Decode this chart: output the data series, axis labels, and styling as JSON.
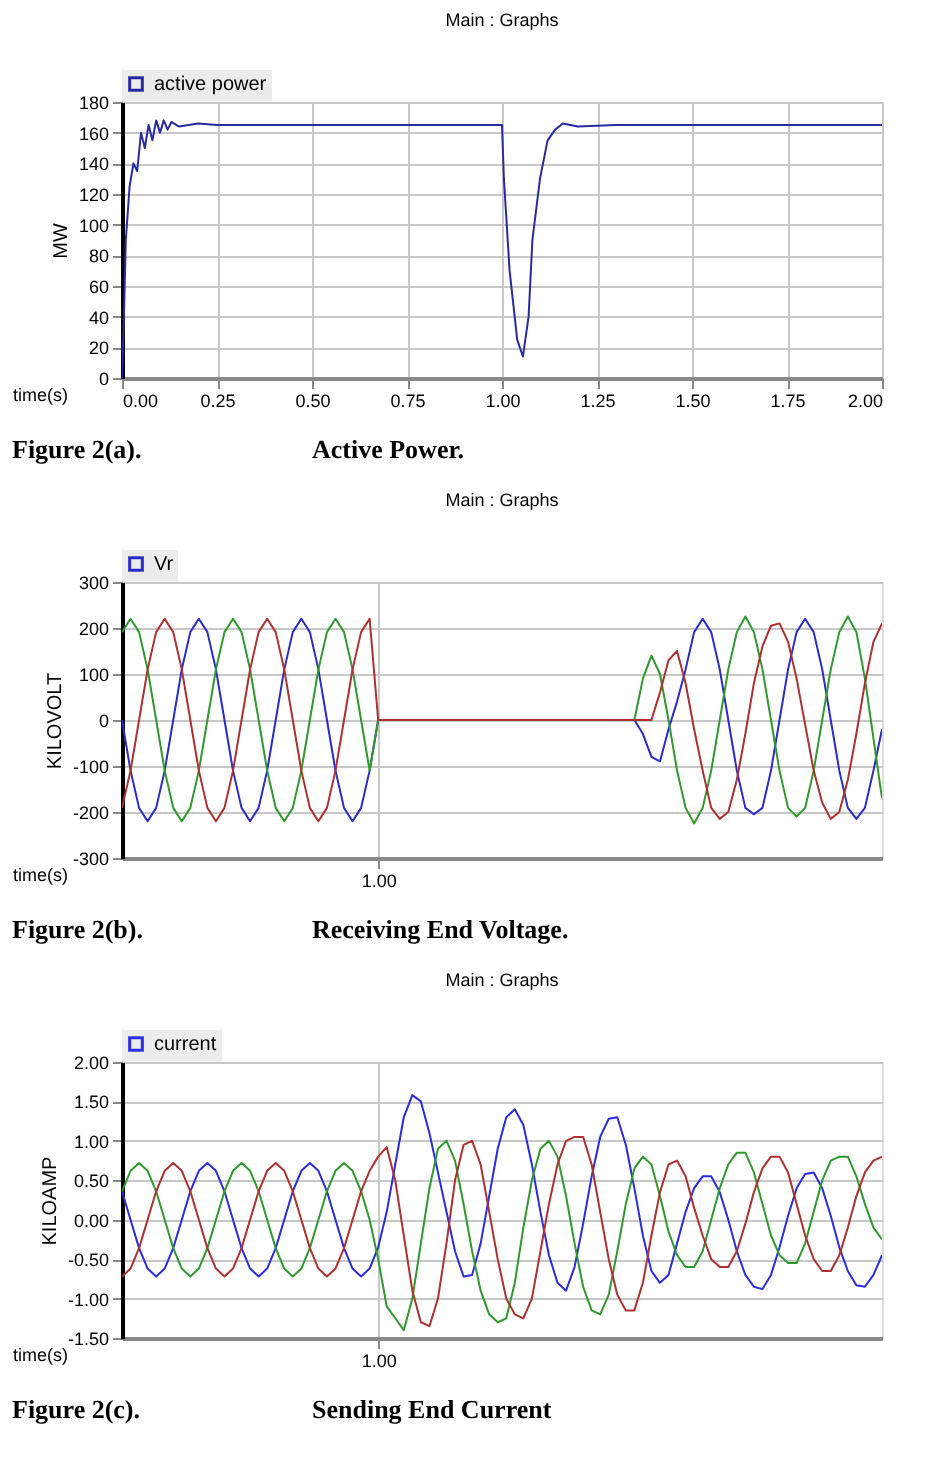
{
  "chart_data": [
    {
      "type": "line",
      "title": "Main : Graphs",
      "xlabel": "time(s)",
      "ylabel": "MW",
      "legend": "top left",
      "grid": true,
      "annotations": [
        "Figure 2(a).",
        "Active Power."
      ],
      "x": [
        0,
        0.005,
        0.01,
        0.02,
        0.03,
        0.04,
        0.05,
        0.06,
        0.07,
        0.08,
        0.09,
        0.1,
        0.11,
        0.12,
        0.13,
        0.15,
        0.2,
        0.25,
        0.35,
        1.0,
        1.005,
        1.02,
        1.04,
        1.055,
        1.07,
        1.08,
        1.1,
        1.12,
        1.14,
        1.16,
        1.2,
        1.3,
        2.0
      ],
      "xlim": [
        0,
        2.0
      ],
      "ylim": [
        0,
        180
      ],
      "xticks": [
        {
          "value": 0,
          "label": "0.00"
        },
        {
          "value": 0.25,
          "label": "0.25"
        },
        {
          "value": 0.5,
          "label": "0.50"
        },
        {
          "value": 0.75,
          "label": "0.75"
        },
        {
          "value": 1,
          "label": "1.00"
        },
        {
          "value": 1.25,
          "label": "1.25"
        },
        {
          "value": 1.5,
          "label": "1.50"
        },
        {
          "value": 1.75,
          "label": "1.75"
        },
        {
          "value": 2,
          "label": "2.00"
        }
      ],
      "yticks": [
        0,
        20,
        40,
        60,
        80,
        100,
        120,
        140,
        160,
        180
      ],
      "series": [
        {
          "name": "active power",
          "color": "#2a2aa0",
          "values": [
            0,
            40,
            90,
            125,
            140,
            135,
            160,
            150,
            165,
            155,
            168,
            160,
            168,
            162,
            167,
            164,
            166,
            165,
            165,
            165,
            130,
            70,
            25,
            14,
            40,
            90,
            130,
            155,
            162,
            166,
            164,
            165,
            165
          ]
        }
      ]
    },
    {
      "type": "line",
      "title": "Main : Graphs",
      "xlabel": "time(s)",
      "ylabel": "KILOVOLT",
      "legend": "top left",
      "grid": true,
      "annotations": [
        "Figure 2(b).",
        "Receiving End Voltage."
      ],
      "categories": [
        null,
        null,
        null,
        null,
        null,
        null,
        null,
        null,
        null,
        null,
        null,
        null,
        null,
        null,
        null,
        null,
        null,
        null,
        null,
        null,
        null,
        null,
        null,
        null,
        null,
        null,
        null,
        null,
        null,
        null,
        "1.00",
        null,
        null,
        null,
        null,
        null,
        null,
        null,
        null,
        null,
        null,
        null,
        null,
        null,
        null,
        null,
        null,
        null,
        null,
        null,
        null,
        null,
        null,
        null,
        null,
        null,
        null,
        null,
        null,
        null,
        null,
        null,
        null,
        null,
        null,
        null,
        null,
        null,
        null,
        null,
        null,
        null,
        null,
        null,
        null,
        null,
        null,
        null,
        null,
        null,
        null,
        null,
        null,
        null,
        null,
        null,
        null,
        null,
        null,
        null
      ],
      "ylim": [
        -300,
        300
      ],
      "yticks": [
        -300,
        -200,
        -100,
        0,
        100,
        200,
        300
      ],
      "series": [
        {
          "name": "Vr",
          "color": "#2b2bc8",
          "values": [
            0,
            -110,
            -191,
            -220,
            -191,
            -110,
            0,
            110,
            191,
            220,
            191,
            110,
            0,
            -110,
            -191,
            -220,
            -191,
            -110,
            0,
            110,
            191,
            220,
            191,
            110,
            0,
            -110,
            -191,
            -220,
            -191,
            -110,
            0,
            0,
            0,
            0,
            0,
            0,
            0,
            0,
            0,
            0,
            0,
            0,
            0,
            0,
            0,
            0,
            0,
            0,
            0,
            0,
            0,
            0,
            0,
            0,
            0,
            0,
            0,
            0,
            0,
            0,
            0,
            -30,
            -80,
            -90,
            -20,
            40,
            110,
            191,
            220,
            191,
            110,
            0,
            -110,
            -191,
            -205,
            -191,
            -110,
            0,
            110,
            191,
            220,
            191,
            110,
            0,
            -110,
            -191,
            -215,
            -191,
            -110,
            -20
          ]
        },
        {
          "color": "#2e9a2e",
          "values": [
            191,
            220,
            191,
            110,
            0,
            -110,
            -191,
            -220,
            -191,
            -110,
            0,
            110,
            191,
            220,
            191,
            110,
            0,
            -110,
            -191,
            -220,
            -191,
            -110,
            0,
            110,
            191,
            220,
            191,
            110,
            0,
            -110,
            0,
            0,
            0,
            0,
            0,
            0,
            0,
            0,
            0,
            0,
            0,
            0,
            0,
            0,
            0,
            0,
            0,
            0,
            0,
            0,
            0,
            0,
            0,
            0,
            0,
            0,
            0,
            0,
            0,
            0,
            0,
            90,
            140,
            100,
            0,
            -110,
            -191,
            -225,
            -191,
            -110,
            0,
            110,
            191,
            225,
            191,
            110,
            0,
            -110,
            -191,
            -210,
            -191,
            -110,
            0,
            110,
            191,
            225,
            191,
            90,
            -40,
            -170
          ]
        },
        {
          "color": "#b03030",
          "values": [
            -191,
            -110,
            0,
            110,
            191,
            220,
            191,
            110,
            0,
            -110,
            -191,
            -220,
            -191,
            -110,
            0,
            110,
            191,
            220,
            191,
            110,
            0,
            -110,
            -191,
            -220,
            -191,
            -110,
            0,
            110,
            191,
            220,
            0,
            0,
            0,
            0,
            0,
            0,
            0,
            0,
            0,
            0,
            0,
            0,
            0,
            0,
            0,
            0,
            0,
            0,
            0,
            0,
            0,
            0,
            0,
            0,
            0,
            0,
            0,
            0,
            0,
            0,
            0,
            0,
            0,
            60,
            130,
            150,
            80,
            -20,
            -110,
            -191,
            -215,
            -200,
            -130,
            -30,
            80,
            160,
            205,
            210,
            170,
            90,
            -10,
            -110,
            -180,
            -215,
            -200,
            -130,
            -30,
            80,
            170,
            210
          ]
        }
      ]
    },
    {
      "type": "line",
      "title": "Main : Graphs",
      "xlabel": "time(s)",
      "ylabel": "KILOAMP",
      "legend": "top left",
      "grid": true,
      "annotations": [
        "Figure 2(c).",
        "Sending End Current"
      ],
      "categories": [
        null,
        null,
        null,
        null,
        null,
        null,
        null,
        null,
        null,
        null,
        null,
        null,
        null,
        null,
        null,
        null,
        null,
        null,
        null,
        null,
        null,
        null,
        null,
        null,
        null,
        null,
        null,
        null,
        null,
        null,
        "1.00",
        null,
        null,
        null,
        null,
        null,
        null,
        null,
        null,
        null,
        null,
        null,
        null,
        null,
        null,
        null,
        null,
        null,
        null,
        null,
        null,
        null,
        null,
        null,
        null,
        null,
        null,
        null,
        null,
        null,
        null,
        null,
        null,
        null,
        null,
        null,
        null,
        null,
        null,
        null,
        null,
        null,
        null,
        null,
        null,
        null,
        null,
        null,
        null,
        null,
        null,
        null,
        null,
        null,
        null,
        null,
        null,
        null,
        null,
        null
      ],
      "ylim": [
        -1.5,
        2.0
      ],
      "yticks": [
        {
          "value": -1.5,
          "label": "-1.50"
        },
        {
          "value": -1,
          "label": "-1.00"
        },
        {
          "value": -0.5,
          "label": "-0.50"
        },
        {
          "value": 0,
          "label": "0.00"
        },
        {
          "value": 0.5,
          "label": "0.50"
        },
        {
          "value": 1,
          "label": "1.00"
        },
        {
          "value": 1.5,
          "label": "1.50"
        },
        {
          "value": 2,
          "label": "2.00"
        }
      ],
      "series": [
        {
          "name": "current",
          "color": "#2b2be0",
          "values": [
            0.36,
            0,
            -0.36,
            -0.62,
            -0.72,
            -0.62,
            -0.36,
            0,
            0.36,
            0.62,
            0.72,
            0.62,
            0.36,
            0,
            -0.36,
            -0.62,
            -0.72,
            -0.62,
            -0.36,
            0,
            0.36,
            0.62,
            0.72,
            0.62,
            0.36,
            0,
            -0.36,
            -0.62,
            -0.72,
            -0.62,
            -0.35,
            0.1,
            0.7,
            1.3,
            1.58,
            1.5,
            1.1,
            0.6,
            0.1,
            -0.4,
            -0.72,
            -0.7,
            -0.3,
            0.3,
            0.9,
            1.3,
            1.4,
            1.2,
            0.7,
            0.1,
            -0.45,
            -0.8,
            -0.9,
            -0.6,
            -0.05,
            0.55,
            1.05,
            1.28,
            1.3,
            0.95,
            0.4,
            -0.2,
            -0.65,
            -0.8,
            -0.7,
            -0.3,
            0.1,
            0.4,
            0.55,
            0.55,
            0.35,
            0,
            -0.4,
            -0.7,
            -0.85,
            -0.88,
            -0.7,
            -0.35,
            0.05,
            0.4,
            0.58,
            0.6,
            0.4,
            0.05,
            -0.35,
            -0.65,
            -0.83,
            -0.85,
            -0.7,
            -0.45
          ]
        },
        {
          "color": "#2e9a2e",
          "values": [
            0.36,
            0.62,
            0.72,
            0.62,
            0.36,
            0,
            -0.36,
            -0.62,
            -0.72,
            -0.62,
            -0.36,
            0,
            0.36,
            0.62,
            0.72,
            0.62,
            0.36,
            0,
            -0.36,
            -0.62,
            -0.72,
            -0.62,
            -0.36,
            0,
            0.36,
            0.62,
            0.72,
            0.62,
            0.36,
            0,
            -0.5,
            -1.1,
            -1.25,
            -1.4,
            -1,
            -0.3,
            0.4,
            0.9,
            1,
            0.75,
            0.2,
            -0.4,
            -0.9,
            -1.2,
            -1.3,
            -1.25,
            -0.8,
            -0.1,
            0.5,
            0.9,
            1,
            0.8,
            0.3,
            -0.3,
            -0.85,
            -1.15,
            -1.2,
            -0.95,
            -0.4,
            0.2,
            0.65,
            0.8,
            0.7,
            0.3,
            -0.15,
            -0.45,
            -0.6,
            -0.6,
            -0.4,
            0,
            0.4,
            0.7,
            0.85,
            0.85,
            0.6,
            0.2,
            -0.2,
            -0.45,
            -0.55,
            -0.55,
            -0.3,
            0.1,
            0.5,
            0.75,
            0.8,
            0.8,
            0.55,
            0.2,
            -0.1,
            -0.25
          ]
        },
        {
          "color": "#b03030",
          "values": [
            -0.72,
            -0.62,
            -0.36,
            0,
            0.36,
            0.62,
            0.72,
            0.62,
            0.36,
            0,
            -0.36,
            -0.62,
            -0.72,
            -0.62,
            -0.36,
            0,
            0.36,
            0.62,
            0.72,
            0.62,
            0.36,
            0,
            -0.36,
            -0.62,
            -0.72,
            -0.62,
            -0.36,
            0,
            0.36,
            0.62,
            0.8,
            0.92,
            0.5,
            -0.2,
            -0.9,
            -1.3,
            -1.35,
            -1,
            -0.3,
            0.5,
            0.95,
            1,
            0.7,
            0.1,
            -0.5,
            -1,
            -1.2,
            -1.25,
            -1,
            -0.4,
            0.2,
            0.7,
            1,
            1.05,
            1.05,
            0.7,
            0.1,
            -0.5,
            -0.95,
            -1.15,
            -1.15,
            -0.8,
            -0.2,
            0.35,
            0.7,
            0.75,
            0.55,
            0.15,
            -0.2,
            -0.5,
            -0.6,
            -0.6,
            -0.4,
            -0.05,
            0.35,
            0.65,
            0.8,
            0.8,
            0.6,
            0.2,
            -0.2,
            -0.5,
            -0.65,
            -0.65,
            -0.45,
            -0.1,
            0.3,
            0.6,
            0.75,
            0.8
          ]
        }
      ]
    }
  ]
}
